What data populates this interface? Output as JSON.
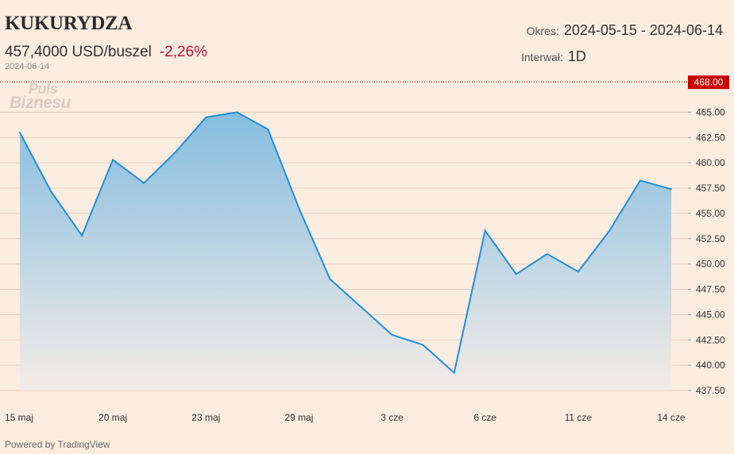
{
  "header": {
    "title": "KUKURYDZA",
    "price": "457,4000 USD/buszel",
    "change": "-2,26%",
    "date": "2024-06-14",
    "okres_label": "Okres:",
    "okres_value": "2024-05-15 - 2024-06-14",
    "interwal_label": "Interwał:",
    "interwal_value": "1D"
  },
  "watermark": {
    "line1": "Puls",
    "line2": "Biznesu"
  },
  "footer": {
    "powered": "Powered by TradingView"
  },
  "colors": {
    "line": "#1e8fd9",
    "area_top": "#7fbbe0",
    "background": "#fbece0",
    "grid": "#e6cfc0",
    "last_price_badge": "#cc0000",
    "change_negative": "#c8102e"
  },
  "chart_data": {
    "type": "area",
    "x": [
      "2024-05-15",
      "2024-05-16",
      "2024-05-17",
      "2024-05-20",
      "2024-05-21",
      "2024-05-22",
      "2024-05-23",
      "2024-05-24",
      "2024-05-28",
      "2024-05-29",
      "2024-05-30",
      "2024-05-31",
      "2024-06-03",
      "2024-06-04",
      "2024-06-05",
      "2024-06-06",
      "2024-06-07",
      "2024-06-10",
      "2024-06-11",
      "2024-06-12",
      "2024-06-13",
      "2024-06-14"
    ],
    "values": [
      463.0,
      457.2,
      452.8,
      460.3,
      458.0,
      461.0,
      464.5,
      465.0,
      463.3,
      455.5,
      448.5,
      445.75,
      443.0,
      442.0,
      439.25,
      453.3,
      449.0,
      451.0,
      449.25,
      453.25,
      458.25,
      457.4
    ],
    "x_tick_labels": [
      "15 maj",
      "20 maj",
      "23 maj",
      "29 maj",
      "3 cze",
      "6 cze",
      "11 cze",
      "14 cze"
    ],
    "x_tick_index": [
      0,
      3,
      6,
      9,
      12,
      15,
      18,
      21
    ],
    "y_ticks": [
      437.5,
      440,
      442.5,
      445,
      447.5,
      450,
      452.5,
      455,
      457.5,
      460,
      462.5,
      465
    ],
    "y_tick_labels": [
      "437.50",
      "440.00",
      "442.50",
      "445.00",
      "447.50",
      "450.00",
      "452.50",
      "455.00",
      "457.50",
      "460.00",
      "462.50",
      "465.00"
    ],
    "ylim": [
      437.5,
      468
    ],
    "reference_line": {
      "value": 468.0,
      "label": "468.00"
    },
    "grid": true
  }
}
